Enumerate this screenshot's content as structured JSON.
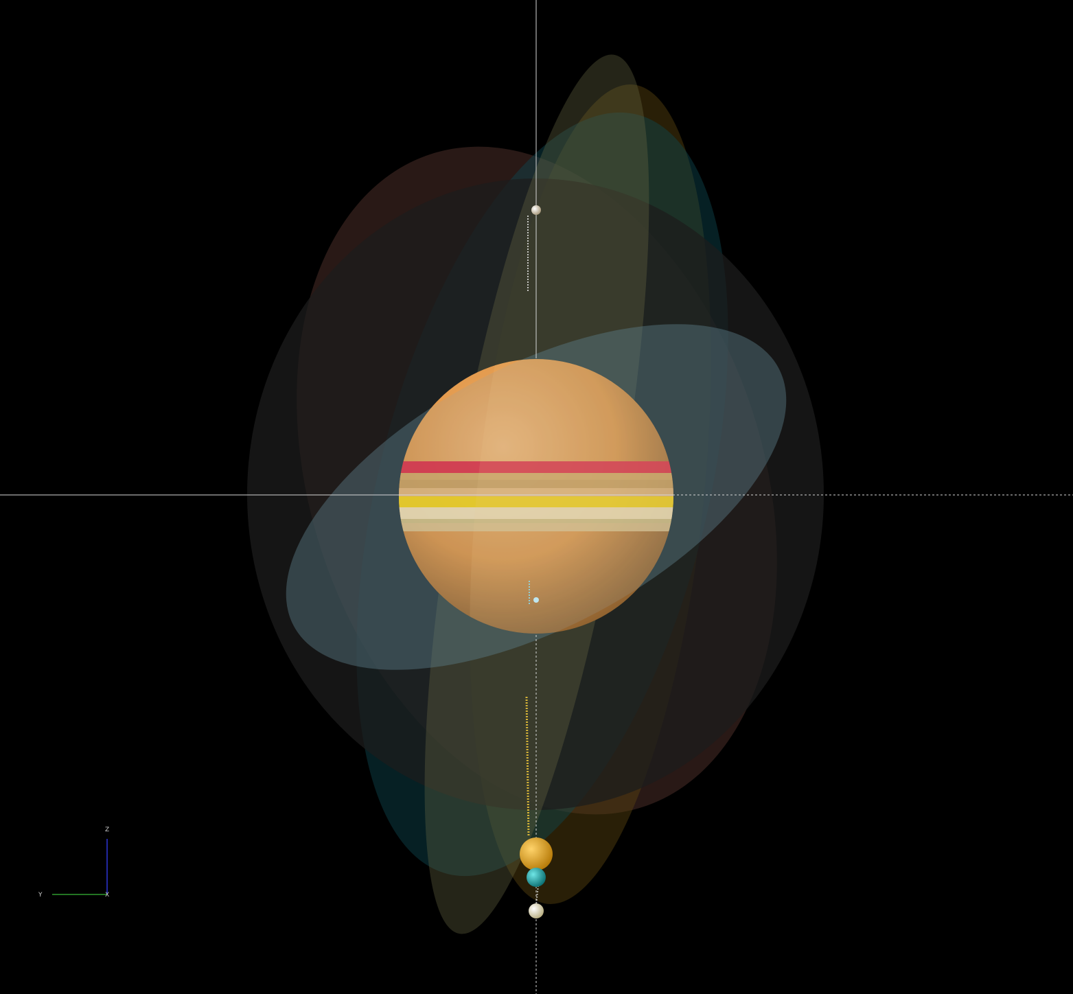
{
  "scene": {
    "background": "#000000",
    "crosshair_color": "#d8d8d8",
    "planet": {
      "name": "gas-giant",
      "base_color": "#e0943c",
      "highlight_color": "#f2b168",
      "shadow_color": "#8a5a26",
      "bands": [
        {
          "name": "red-band",
          "color": "#e01e3c"
        },
        {
          "name": "tan-band-1",
          "color": "#d4a55c"
        },
        {
          "name": "tan-band-2",
          "color": "#c99b56"
        },
        {
          "name": "yellow-band",
          "color": "#f7d40a"
        },
        {
          "name": "cream-band",
          "color": "#f4e2b6"
        },
        {
          "name": "olive-band",
          "color": "#cfc185"
        },
        {
          "name": "sand-band",
          "color": "#dcc48e"
        }
      ]
    },
    "orbits": [
      {
        "name": "orbit-brown-outer",
        "color": "#5a3a32"
      },
      {
        "name": "orbit-dark-wide",
        "color": "#2a2a2a"
      },
      {
        "name": "orbit-teal",
        "color": "#0f4a52"
      },
      {
        "name": "orbit-amber",
        "color": "#5a4210"
      },
      {
        "name": "orbit-olive-narrow",
        "color": "#5a5a3c"
      },
      {
        "name": "orbit-slate-ring",
        "color": "#5a7a86"
      }
    ],
    "moons": [
      {
        "name": "moon-top",
        "color": "#e8ddc8"
      },
      {
        "name": "moon-small-center",
        "color": "#bfe6ef"
      },
      {
        "name": "moon-orange",
        "color": "#f0a818"
      },
      {
        "name": "moon-teal",
        "color": "#1fb8b8"
      },
      {
        "name": "moon-cream",
        "color": "#f2ecc2"
      }
    ],
    "trail_colors": {
      "white": "#e8e8e8",
      "yellow": "#e8c23a",
      "cyan": "#8fd8e6"
    }
  },
  "axes_gizmo": {
    "z_label": "Z",
    "y_label": "Y",
    "x_label": "X",
    "z_color": "#2d35d8",
    "y_color": "#2f9a2f",
    "x_color": "#c83030"
  }
}
